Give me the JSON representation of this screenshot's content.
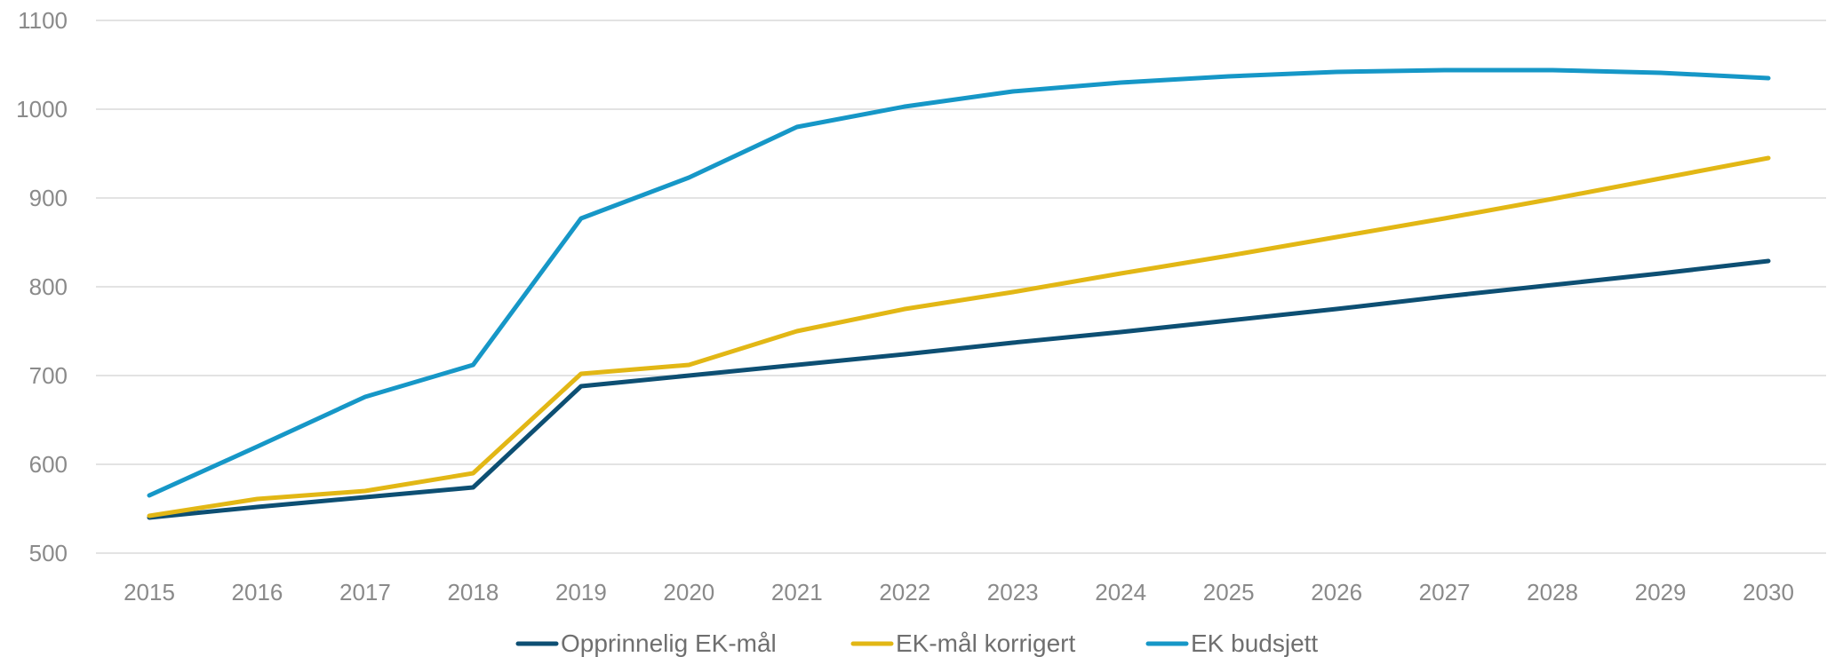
{
  "chart_data": {
    "type": "line",
    "title": "",
    "xlabel": "",
    "ylabel": "",
    "categories": [
      "2015",
      "2016",
      "2017",
      "2018",
      "2019",
      "2020",
      "2021",
      "2022",
      "2023",
      "2024",
      "2025",
      "2026",
      "2027",
      "2028",
      "2029",
      "2030"
    ],
    "ylim": [
      500,
      1100
    ],
    "yticks": [
      500,
      600,
      700,
      800,
      900,
      1000,
      1100
    ],
    "grid": true,
    "legend_position": "bottom",
    "series": [
      {
        "name": "Opprinnelig EK-mål",
        "color": "#0d4f73",
        "values": [
          540,
          552,
          563,
          574,
          688,
          700,
          712,
          724,
          737,
          749,
          762,
          775,
          789,
          802,
          815,
          829
        ]
      },
      {
        "name": "EK-mål korrigert",
        "color": "#e2b715",
        "values": [
          542,
          561,
          570,
          590,
          702,
          712,
          750,
          775,
          794,
          815,
          835,
          856,
          877,
          899,
          922,
          945
        ]
      },
      {
        "name": "EK budsjett",
        "color": "#1697c7",
        "values": [
          565,
          620,
          676,
          712,
          877,
          923,
          980,
          1003,
          1020,
          1030,
          1037,
          1042,
          1044,
          1044,
          1041,
          1035
        ]
      }
    ]
  }
}
